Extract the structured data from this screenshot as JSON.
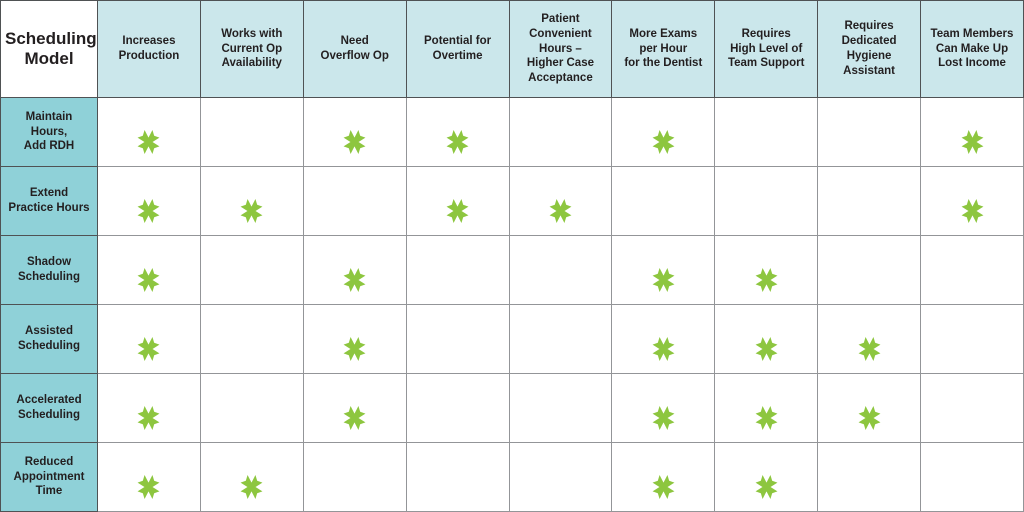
{
  "chart_data": {
    "type": "table",
    "title": "",
    "corner_header": "Scheduling Model",
    "columns": [
      "Increases Production",
      "Works with Current Op Availability",
      "Need Overflow Op",
      "Potential for Overtime",
      "Patient Convenient Hours – Higher Case Acceptance",
      "More Exams per Hour for the Dentist",
      "Requires High Level of Team Support",
      "Requires Dedicated Hygiene Assistant",
      "Team Members Can Make Up Lost Income"
    ],
    "rows": [
      "Maintain Hours, Add RDH",
      "Extend Practice Hours",
      "Shadow Scheduling",
      "Assisted Scheduling",
      "Accelerated Scheduling",
      "Reduced Appointment Time"
    ],
    "mark_symbol": "X",
    "matrix": [
      [
        1,
        0,
        1,
        1,
        0,
        1,
        0,
        0,
        1
      ],
      [
        1,
        1,
        0,
        1,
        1,
        0,
        0,
        0,
        1
      ],
      [
        1,
        0,
        1,
        0,
        0,
        1,
        1,
        0,
        0
      ],
      [
        1,
        0,
        1,
        0,
        0,
        1,
        1,
        1,
        0
      ],
      [
        1,
        0,
        1,
        0,
        0,
        1,
        1,
        1,
        0
      ],
      [
        1,
        1,
        0,
        0,
        0,
        1,
        1,
        0,
        0
      ]
    ]
  },
  "display": {
    "corner_label": "Scheduling\nModel",
    "column_labels": [
      "Increases\nProduction",
      "Works with\nCurrent Op\nAvailability",
      "Need\nOverflow Op",
      "Potential for\nOvertime",
      "Patient\nConvenient\nHours –\nHigher Case\nAcceptance",
      "More Exams\nper Hour\nfor the Dentist",
      "Requires\nHigh Level of\nTeam Support",
      "Requires\nDedicated\nHygiene\nAssistant",
      "Team Members\nCan Make Up\nLost Income"
    ],
    "row_labels": [
      "Maintain\nHours,\nAdd RDH",
      "Extend\nPractice Hours",
      "Shadow\nScheduling",
      "Assisted\nScheduling",
      "Accelerated\nScheduling",
      "Reduced\nAppointment\nTime"
    ],
    "colors": {
      "header_bg": "#cbe7eb",
      "row_label_bg": "#8fd1d8",
      "mark_green": "#8dc63f",
      "grid_dark": "#4f5254",
      "grid_light": "#939598",
      "text": "#231f20",
      "cell_bg": "#ffffff"
    }
  }
}
